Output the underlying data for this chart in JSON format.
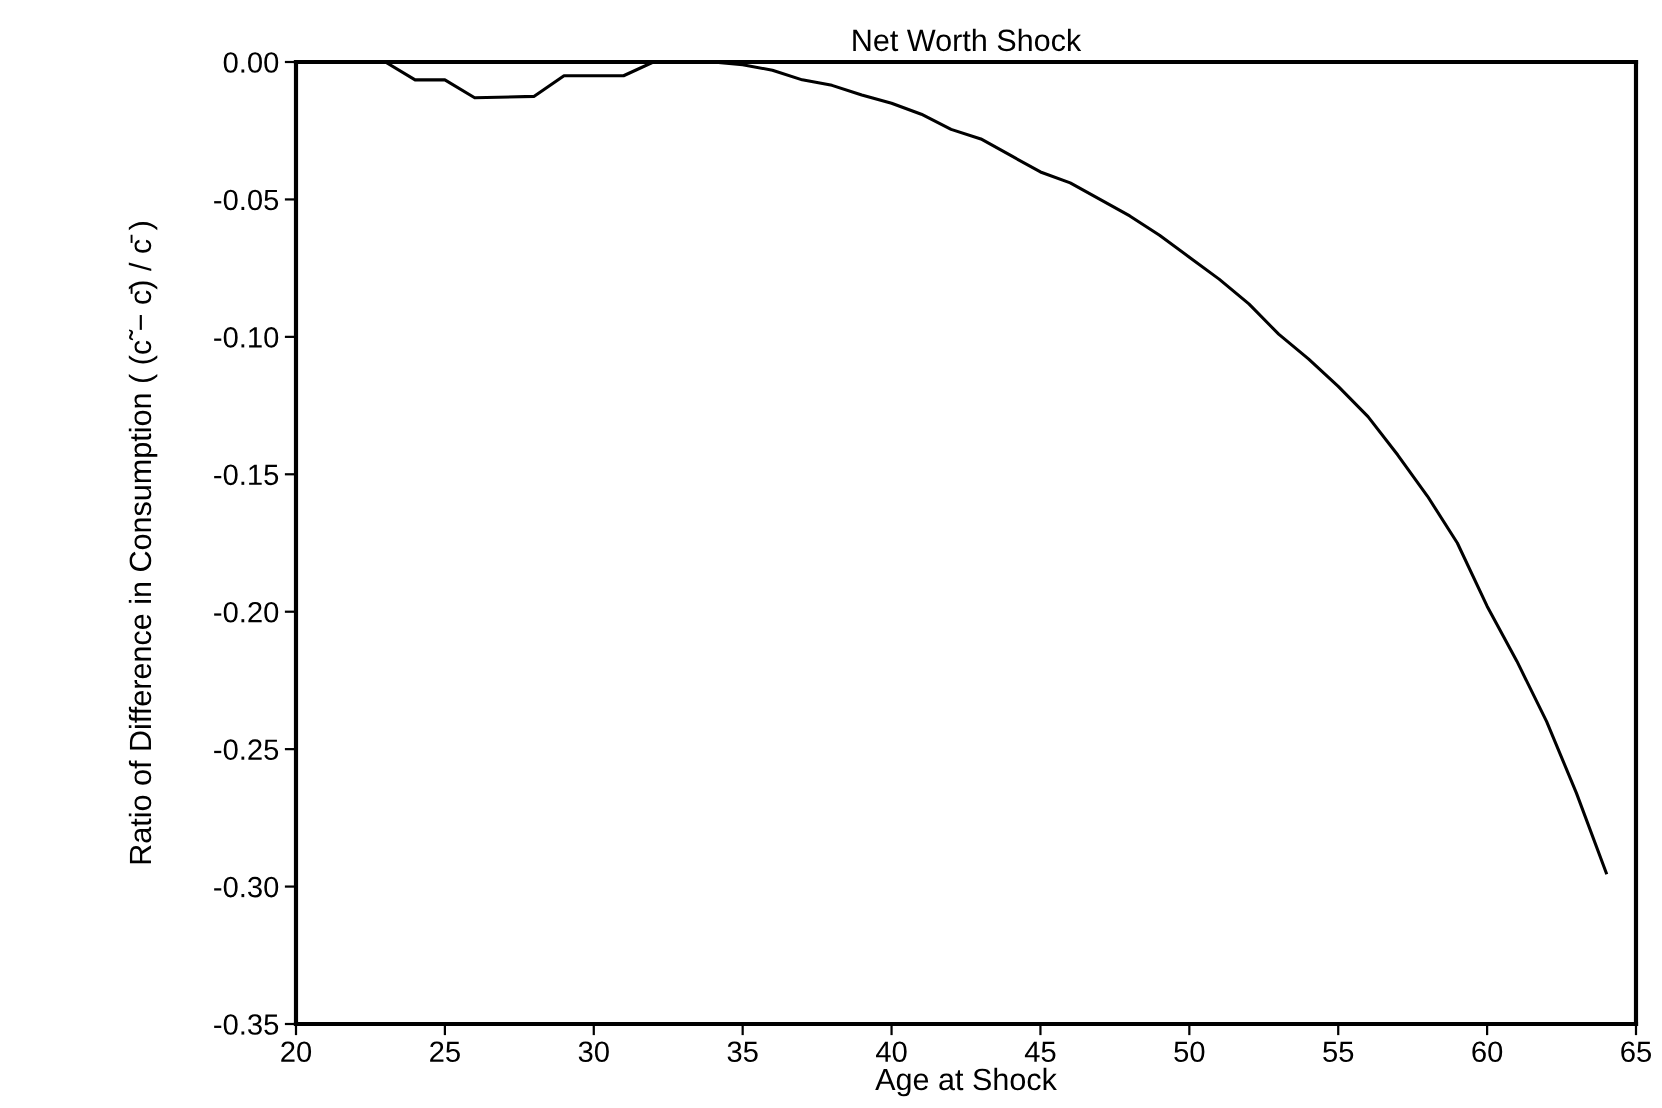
{
  "chart_data": {
    "type": "line",
    "title": "Net Worth Shock",
    "xlabel": "Age at Shock",
    "ylabel": "Ratio of Difference in Consumption ( (c̃ − c̄) / c̄ )",
    "x": [
      20,
      21,
      22,
      23,
      24,
      25,
      26,
      28,
      29,
      31,
      32,
      34,
      35,
      36,
      37,
      38,
      39,
      40,
      41,
      42,
      43,
      44,
      45,
      46,
      47,
      48,
      49,
      50,
      51,
      52,
      53,
      54,
      55,
      56,
      57,
      58,
      59,
      60,
      61,
      62,
      63,
      64
    ],
    "series": [
      {
        "color": "#000000",
        "values": [
          0,
          0,
          0,
          0,
          -0.0065,
          -0.0065,
          -0.013,
          -0.0125,
          -0.005,
          -0.005,
          0,
          0,
          -0.001,
          -0.003,
          -0.0065,
          -0.0085,
          -0.012,
          -0.015,
          -0.019,
          -0.0245,
          -0.028,
          -0.034,
          -0.04,
          -0.044,
          -0.05,
          -0.056,
          -0.063,
          -0.071,
          -0.079,
          -0.088,
          -0.099,
          -0.108,
          -0.118,
          -0.129,
          -0.143,
          -0.158,
          -0.175,
          -0.198,
          -0.218,
          -0.24,
          -0.266,
          -0.295
        ]
      }
    ],
    "xlim": [
      20,
      65
    ],
    "xticks": [
      20,
      25,
      30,
      35,
      40,
      45,
      50,
      55,
      60,
      65
    ],
    "ylim": [
      -0.35,
      0
    ],
    "yticks": [
      {
        "value": -0.35,
        "label": "-0.35"
      },
      {
        "value": -0.3,
        "label": "-0.30"
      },
      {
        "value": -0.25,
        "label": "-0.25"
      },
      {
        "value": -0.2,
        "label": "-0.20"
      },
      {
        "value": -0.15,
        "label": "-0.15"
      },
      {
        "value": -0.1,
        "label": "-0.10"
      },
      {
        "value": -0.05,
        "label": "-0.05"
      },
      {
        "value": 0,
        "label": "0.00"
      }
    ],
    "grid": false,
    "legend": false,
    "marker": "none",
    "line_style": "solid"
  }
}
